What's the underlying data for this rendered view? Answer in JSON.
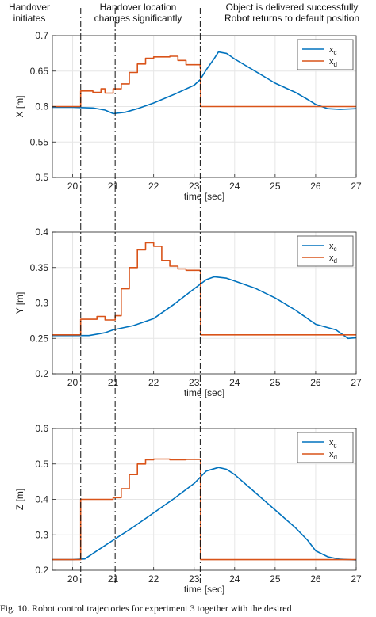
{
  "annotations": [
    {
      "text": "Handover\ninitiates",
      "x": 20.2
    },
    {
      "text": "Handover location\nchanges significantly",
      "x": 21.05
    },
    {
      "text": "Object is delivered successfully\nRobot returns to default position",
      "x": 23.15
    }
  ],
  "caption": "Fig. 10.  Robot control trajectories for experiment 3 together with the desired",
  "colors": {
    "xc": "#0072BD",
    "xd": "#D95319",
    "grid": "#e6e6e6",
    "axis": "#262626"
  },
  "chart_data": [
    {
      "type": "line",
      "ylabel": "X [m]",
      "xlabel": "time [sec]",
      "xlim": [
        19.5,
        27
      ],
      "ylim": [
        0.5,
        0.7
      ],
      "xticks": [
        20,
        21,
        22,
        23,
        24,
        25,
        26,
        27
      ],
      "yticks": [
        0.5,
        0.55,
        0.6,
        0.65,
        0.7
      ],
      "ytick_labels": [
        "0.5",
        "0.55",
        "0.6",
        "0.65",
        "0.7"
      ],
      "grid": true,
      "legend": {
        "position": "top-right",
        "entries": [
          {
            "base": "x",
            "sub": "c"
          },
          {
            "base": "x",
            "sub": "d"
          }
        ]
      },
      "series": [
        {
          "name": "x_c",
          "color": "#0072BD",
          "step": false,
          "x": [
            19.5,
            20.0,
            20.5,
            20.8,
            21.0,
            21.3,
            21.6,
            22.0,
            22.5,
            23.0,
            23.15,
            23.3,
            23.5,
            23.6,
            23.8,
            24.0,
            24.5,
            25.0,
            25.5,
            25.8,
            26.0,
            26.3,
            26.6,
            27.0
          ],
          "y": [
            0.599,
            0.599,
            0.598,
            0.595,
            0.59,
            0.592,
            0.597,
            0.605,
            0.617,
            0.63,
            0.638,
            0.652,
            0.668,
            0.677,
            0.675,
            0.667,
            0.65,
            0.633,
            0.62,
            0.61,
            0.603,
            0.597,
            0.596,
            0.597
          ]
        },
        {
          "name": "x_d",
          "color": "#D95319",
          "step": true,
          "x": [
            19.5,
            20.2,
            20.5,
            20.7,
            20.8,
            21.0,
            21.2,
            21.4,
            21.6,
            21.8,
            22.0,
            22.4,
            22.6,
            22.8,
            23.15,
            23.16,
            27.0
          ],
          "y": [
            0.6,
            0.622,
            0.62,
            0.625,
            0.619,
            0.625,
            0.632,
            0.648,
            0.66,
            0.668,
            0.67,
            0.671,
            0.665,
            0.659,
            0.655,
            0.6,
            0.6
          ]
        }
      ]
    },
    {
      "type": "line",
      "ylabel": "Y [m]",
      "xlabel": "time [sec]",
      "xlim": [
        19.5,
        27
      ],
      "ylim": [
        0.2,
        0.4
      ],
      "xticks": [
        20,
        21,
        22,
        23,
        24,
        25,
        26,
        27
      ],
      "yticks": [
        0.2,
        0.25,
        0.3,
        0.35,
        0.4
      ],
      "ytick_labels": [
        "0.2",
        "0.25",
        "0.3",
        "0.35",
        "0.4"
      ],
      "grid": true,
      "legend": {
        "position": "top-right",
        "entries": [
          {
            "base": "x",
            "sub": "c"
          },
          {
            "base": "x",
            "sub": "d"
          }
        ]
      },
      "series": [
        {
          "name": "x_c",
          "color": "#0072BD",
          "step": false,
          "x": [
            19.5,
            20.0,
            20.4,
            20.8,
            21.0,
            21.5,
            22.0,
            22.5,
            23.0,
            23.3,
            23.5,
            23.8,
            24.0,
            24.5,
            25.0,
            25.5,
            26.0,
            26.5,
            26.8,
            27.0
          ],
          "y": [
            0.254,
            0.254,
            0.254,
            0.258,
            0.262,
            0.268,
            0.278,
            0.298,
            0.32,
            0.333,
            0.337,
            0.335,
            0.331,
            0.321,
            0.307,
            0.29,
            0.27,
            0.262,
            0.25,
            0.251
          ]
        },
        {
          "name": "x_d",
          "color": "#D95319",
          "step": true,
          "x": [
            19.5,
            20.2,
            20.6,
            20.8,
            21.05,
            21.2,
            21.4,
            21.6,
            21.8,
            22.0,
            22.2,
            22.4,
            22.6,
            22.8,
            23.15,
            23.16,
            27.0
          ],
          "y": [
            0.255,
            0.277,
            0.281,
            0.276,
            0.282,
            0.32,
            0.35,
            0.375,
            0.385,
            0.38,
            0.36,
            0.352,
            0.348,
            0.346,
            0.344,
            0.255,
            0.255
          ]
        }
      ]
    },
    {
      "type": "line",
      "ylabel": "Z [m]",
      "xlabel": "time [sec]",
      "xlim": [
        19.5,
        27
      ],
      "ylim": [
        0.2,
        0.6
      ],
      "xticks": [
        20,
        21,
        22,
        23,
        24,
        25,
        26,
        27
      ],
      "yticks": [
        0.2,
        0.3,
        0.4,
        0.5,
        0.6
      ],
      "ytick_labels": [
        "0.2",
        "0.3",
        "0.4",
        "0.5",
        "0.6"
      ],
      "grid": true,
      "legend": {
        "position": "top-right",
        "entries": [
          {
            "base": "x",
            "sub": "c"
          },
          {
            "base": "x",
            "sub": "d"
          }
        ]
      },
      "series": [
        {
          "name": "x_c",
          "color": "#0072BD",
          "step": false,
          "x": [
            19.5,
            20.0,
            20.3,
            20.6,
            21.0,
            21.5,
            22.0,
            22.5,
            23.0,
            23.3,
            23.6,
            23.8,
            24.0,
            24.5,
            25.0,
            25.5,
            25.8,
            26.0,
            26.3,
            26.6,
            27.0
          ],
          "y": [
            0.23,
            0.23,
            0.232,
            0.255,
            0.285,
            0.322,
            0.362,
            0.402,
            0.445,
            0.48,
            0.49,
            0.485,
            0.47,
            0.42,
            0.37,
            0.32,
            0.285,
            0.255,
            0.238,
            0.231,
            0.229
          ]
        },
        {
          "name": "x_d",
          "color": "#D95319",
          "step": true,
          "x": [
            19.5,
            20.2,
            21.0,
            21.2,
            21.4,
            21.6,
            21.8,
            22.0,
            22.4,
            22.8,
            23.15,
            23.16,
            27.0
          ],
          "y": [
            0.23,
            0.4,
            0.405,
            0.43,
            0.47,
            0.5,
            0.512,
            0.514,
            0.512,
            0.513,
            0.513,
            0.23,
            0.23
          ]
        }
      ]
    }
  ]
}
